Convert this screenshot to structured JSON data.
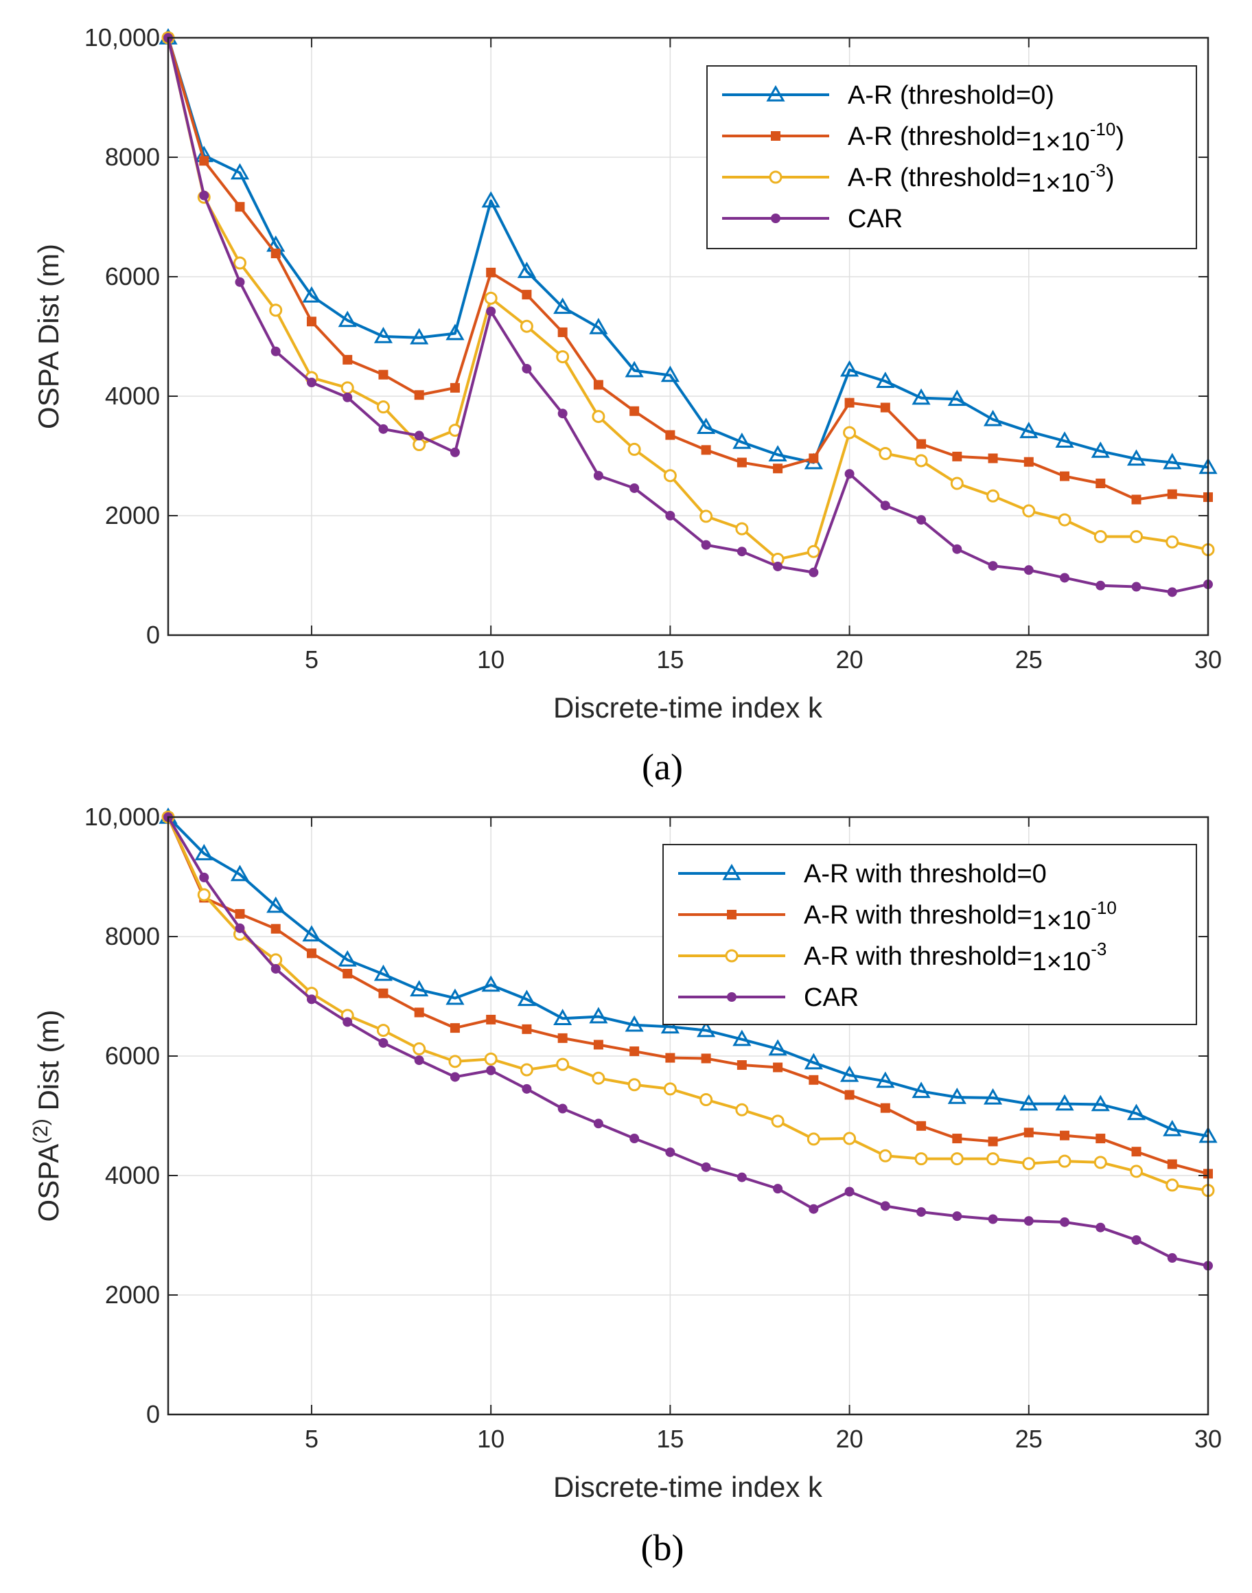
{
  "chart_data": [
    {
      "type": "line",
      "panel": "a",
      "caption": "(a)",
      "xlabel": "Discrete-time index k",
      "ylabel": "OSPA Dist (m)",
      "xlim": [
        1,
        30
      ],
      "ylim": [
        0,
        10000
      ],
      "xticks": [
        5,
        10,
        15,
        20,
        25,
        30
      ],
      "xtick_labels": [
        "5",
        "10",
        "15",
        "20",
        "25",
        "30"
      ],
      "yticks": [
        0,
        2000,
        4000,
        6000,
        8000,
        10000
      ],
      "ytick_labels": [
        "0",
        "2000",
        "4000",
        "6000",
        "8000",
        "10,000"
      ],
      "grid": true,
      "legend_position": "top-right",
      "x": [
        1,
        2,
        3,
        4,
        5,
        6,
        7,
        8,
        9,
        10,
        11,
        12,
        13,
        14,
        15,
        16,
        17,
        18,
        19,
        20,
        21,
        22,
        23,
        24,
        25,
        26,
        27,
        28,
        29,
        30
      ],
      "series": [
        {
          "name": "A-R (threshold=0)",
          "legend_prefix": "A-R (threshold=0)",
          "legend_mult": "",
          "legend_exp": "",
          "legend_suffix": "",
          "color": "#0072BD",
          "marker": "triangle",
          "values": [
            10000,
            8030,
            7740,
            6530,
            5680,
            5270,
            5000,
            4980,
            5050,
            7270,
            6090,
            5490,
            5150,
            4430,
            4350,
            3480,
            3230,
            3020,
            2890,
            4440,
            4250,
            3970,
            3950,
            3610,
            3410,
            3250,
            3080,
            2950,
            2890,
            2810
          ]
        },
        {
          "name": "A-R (threshold=1×10-10)",
          "legend_prefix": "A-R (threshold=",
          "legend_mult": "1×10",
          "legend_exp": "-10",
          "legend_suffix": ")",
          "color": "#D95319",
          "marker": "square",
          "values": [
            10000,
            7940,
            7170,
            6390,
            5250,
            4610,
            4360,
            4020,
            4140,
            6070,
            5700,
            5070,
            4190,
            3750,
            3350,
            3100,
            2890,
            2790,
            2960,
            3890,
            3810,
            3200,
            2990,
            2960,
            2900,
            2660,
            2540,
            2270,
            2360,
            2310
          ]
        },
        {
          "name": "A-R (threshold=1×10-3)",
          "legend_prefix": "A-R (threshold=",
          "legend_mult": "1×10",
          "legend_exp": "-3",
          "legend_suffix": ")",
          "color": "#EDB120",
          "marker": "circle-open",
          "values": [
            10000,
            7330,
            6230,
            5440,
            4310,
            4140,
            3820,
            3190,
            3430,
            5640,
            5170,
            4660,
            3660,
            3110,
            2670,
            1990,
            1780,
            1270,
            1400,
            3390,
            3040,
            2920,
            2540,
            2330,
            2080,
            1930,
            1650,
            1650,
            1560,
            1430
          ]
        },
        {
          "name": "CAR",
          "legend_prefix": "CAR",
          "legend_mult": "",
          "legend_exp": "",
          "legend_suffix": "",
          "color": "#7E2F8E",
          "marker": "dot",
          "values": [
            10000,
            7360,
            5910,
            4750,
            4230,
            3980,
            3450,
            3340,
            3060,
            5420,
            4460,
            3710,
            2670,
            2460,
            2000,
            1510,
            1400,
            1150,
            1050,
            2700,
            2170,
            1930,
            1440,
            1160,
            1090,
            960,
            830,
            810,
            720,
            850
          ]
        }
      ]
    },
    {
      "type": "line",
      "panel": "b",
      "caption": "(b)",
      "xlabel": "Discrete-time index k",
      "ylabel": "OSPA(2) Dist (m)",
      "ylabel_pre": "OSPA",
      "ylabel_sup": "(2)",
      "ylabel_post": " Dist (m)",
      "xlim": [
        1,
        30
      ],
      "ylim": [
        0,
        10000
      ],
      "xticks": [
        5,
        10,
        15,
        20,
        25,
        30
      ],
      "xtick_labels": [
        "5",
        "10",
        "15",
        "20",
        "25",
        "30"
      ],
      "yticks": [
        0,
        2000,
        4000,
        6000,
        8000,
        10000
      ],
      "ytick_labels": [
        "0",
        "2000",
        "4000",
        "6000",
        "8000",
        "10,000"
      ],
      "grid": true,
      "legend_position": "top-right",
      "x": [
        1,
        2,
        3,
        4,
        5,
        6,
        7,
        8,
        9,
        10,
        11,
        12,
        13,
        14,
        15,
        16,
        17,
        18,
        19,
        20,
        21,
        22,
        23,
        24,
        25,
        26,
        27,
        28,
        29,
        30
      ],
      "series": [
        {
          "name": "A-R with threshold=0",
          "legend_prefix": "A-R with threshold=0",
          "legend_mult": "",
          "legend_exp": "",
          "legend_suffix": "",
          "color": "#0072BD",
          "marker": "triangle",
          "values": [
            10000,
            9390,
            9040,
            8510,
            8030,
            7610,
            7370,
            7110,
            6970,
            7190,
            6950,
            6630,
            6660,
            6520,
            6490,
            6430,
            6280,
            6120,
            5890,
            5680,
            5580,
            5410,
            5310,
            5300,
            5200,
            5200,
            5190,
            5040,
            4770,
            4660
          ]
        },
        {
          "name": "A-R with threshold=1×10-10",
          "legend_prefix": "A-R with threshold=",
          "legend_mult": "1×10",
          "legend_exp": "-10",
          "legend_suffix": "",
          "color": "#D95319",
          "marker": "square",
          "values": [
            10000,
            8650,
            8380,
            8130,
            7720,
            7380,
            7050,
            6730,
            6470,
            6610,
            6450,
            6300,
            6190,
            6080,
            5970,
            5960,
            5850,
            5810,
            5600,
            5350,
            5130,
            4830,
            4620,
            4570,
            4720,
            4670,
            4620,
            4400,
            4190,
            4030
          ]
        },
        {
          "name": "A-R with threshold=1×10-3",
          "legend_prefix": "A-R with threshold=",
          "legend_mult": "1×10",
          "legend_exp": "-3",
          "legend_suffix": "",
          "color": "#EDB120",
          "marker": "circle-open",
          "values": [
            10000,
            8700,
            8040,
            7610,
            7050,
            6680,
            6430,
            6120,
            5910,
            5950,
            5770,
            5860,
            5630,
            5520,
            5450,
            5270,
            5100,
            4910,
            4610,
            4620,
            4330,
            4280,
            4280,
            4280,
            4200,
            4240,
            4220,
            4070,
            3840,
            3750
          ]
        },
        {
          "name": "CAR",
          "legend_prefix": "CAR",
          "legend_mult": "",
          "legend_exp": "",
          "legend_suffix": "",
          "color": "#7E2F8E",
          "marker": "dot",
          "values": [
            10000,
            8990,
            8140,
            7460,
            6950,
            6570,
            6220,
            5930,
            5650,
            5760,
            5450,
            5120,
            4870,
            4620,
            4390,
            4140,
            3970,
            3780,
            3440,
            3730,
            3490,
            3390,
            3320,
            3270,
            3240,
            3220,
            3130,
            2920,
            2620,
            2490
          ]
        }
      ]
    }
  ]
}
